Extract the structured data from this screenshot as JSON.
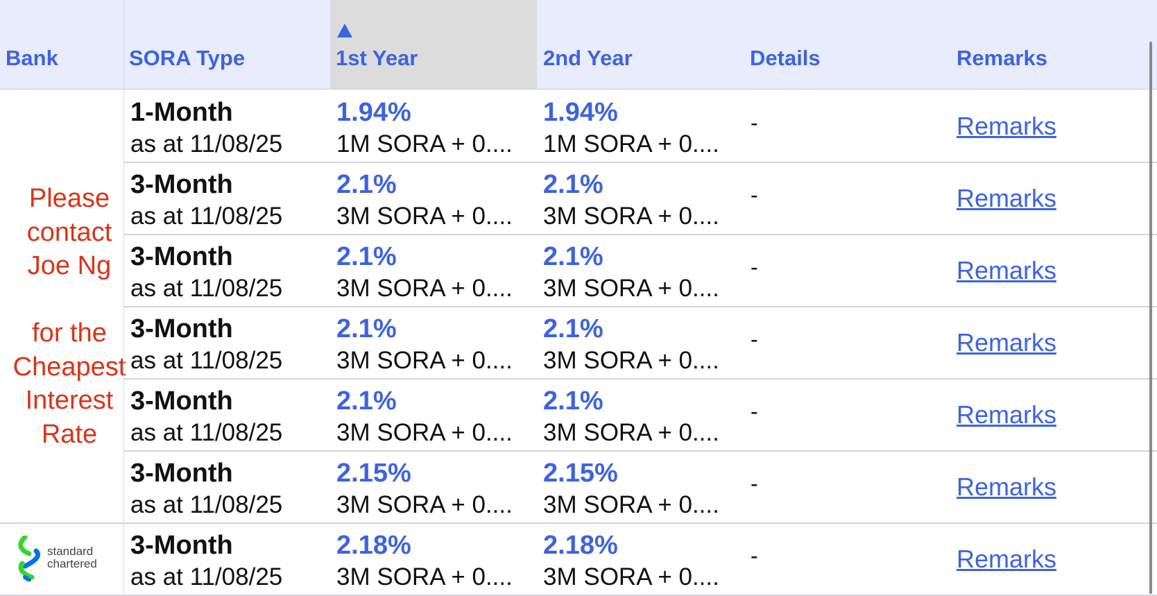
{
  "header": {
    "bank": "Bank",
    "sora_type": "SORA Type",
    "year1": "1st Year",
    "year2": "2nd Year",
    "details": "Details",
    "remarks": "Remarks",
    "sorted_column": "1st Year",
    "sort_direction": "ascending"
  },
  "contact_note": {
    "lines": [
      "Please",
      "contact",
      "Joe Ng",
      "",
      "for the",
      "Cheapest",
      "Interest",
      "Rate"
    ],
    "color": "#d93418"
  },
  "rows": [
    {
      "sora": "1-Month",
      "asof": "as at 11/08/25",
      "y1_rate": "1.94%",
      "y1_formula": "1M SORA + 0....",
      "y2_rate": "1.94%",
      "y2_formula": "1M SORA + 0....",
      "details": "-",
      "remarks": "Remarks"
    },
    {
      "sora": "3-Month",
      "asof": "as at 11/08/25",
      "y1_rate": "2.1%",
      "y1_formula": "3M SORA + 0....",
      "y2_rate": "2.1%",
      "y2_formula": "3M SORA + 0....",
      "details": "-",
      "remarks": "Remarks"
    },
    {
      "sora": "3-Month",
      "asof": "as at 11/08/25",
      "y1_rate": "2.1%",
      "y1_formula": "3M SORA + 0....",
      "y2_rate": "2.1%",
      "y2_formula": "3M SORA + 0....",
      "details": "-",
      "remarks": "Remarks"
    },
    {
      "sora": "3-Month",
      "asof": "as at 11/08/25",
      "y1_rate": "2.1%",
      "y1_formula": "3M SORA + 0....",
      "y2_rate": "2.1%",
      "y2_formula": "3M SORA + 0....",
      "details": "-",
      "remarks": "Remarks"
    },
    {
      "sora": "3-Month",
      "asof": "as at 11/08/25",
      "y1_rate": "2.1%",
      "y1_formula": "3M SORA + 0....",
      "y2_rate": "2.1%",
      "y2_formula": "3M SORA + 0....",
      "details": "-",
      "remarks": "Remarks"
    },
    {
      "sora": "3-Month",
      "asof": "as at 11/08/25",
      "y1_rate": "2.15%",
      "y1_formula": "3M SORA + 0....",
      "y2_rate": "2.15%",
      "y2_formula": "3M SORA + 0....",
      "details": "-",
      "remarks": "Remarks"
    },
    {
      "sora": "3-Month",
      "asof": "as at 11/08/25",
      "y1_rate": "2.18%",
      "y1_formula": "3M SORA + 0....",
      "y2_rate": "2.18%",
      "y2_formula": "3M SORA + 0....",
      "details": "-",
      "remarks": "Remarks",
      "bank_logo": "standard-chartered-logo"
    }
  ],
  "bank_logo": {
    "name": "standard-chartered-logo",
    "text_line1": "standard",
    "text_line2": "chartered",
    "colors": {
      "green": "#38d430",
      "blue": "#0473ea"
    }
  },
  "colors": {
    "accent": "#3d63e0",
    "header_bg": "#e8ecfc",
    "sorted_header_bg": "#dcdcdc",
    "note_red": "#d93418"
  }
}
